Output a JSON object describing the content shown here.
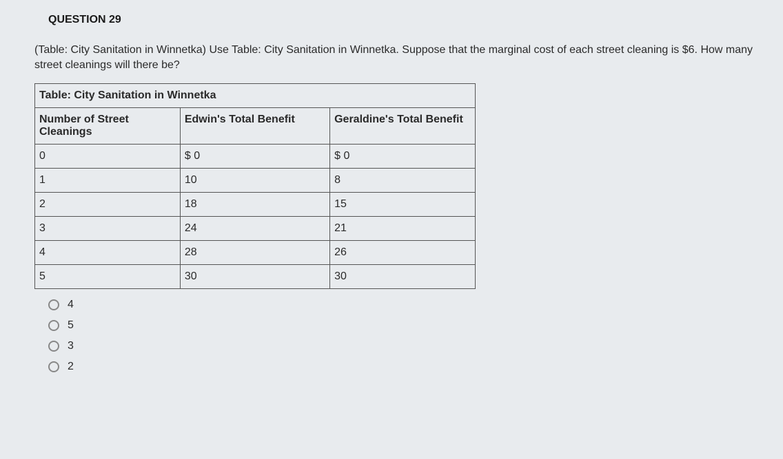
{
  "question": {
    "header": "QUESTION 29",
    "text": "(Table: City Sanitation in Winnetka) Use Table: City Sanitation in Winnetka. Suppose that the marginal cost of each street cleaning is $6. How many street cleanings will there be?"
  },
  "table": {
    "title": "Table: City Sanitation in Winnetka",
    "columns": [
      "Number of Street Cleanings",
      "Edwin's Total Benefit",
      "Geraldine's Total Benefit"
    ],
    "rows": [
      [
        "0",
        "$ 0",
        "$ 0"
      ],
      [
        "1",
        "10",
        "8"
      ],
      [
        "2",
        "18",
        "15"
      ],
      [
        "3",
        "24",
        "21"
      ],
      [
        "4",
        "28",
        "26"
      ],
      [
        "5",
        "30",
        "30"
      ]
    ]
  },
  "options": [
    {
      "label": "4"
    },
    {
      "label": "5"
    },
    {
      "label": "3"
    },
    {
      "label": "2"
    }
  ]
}
